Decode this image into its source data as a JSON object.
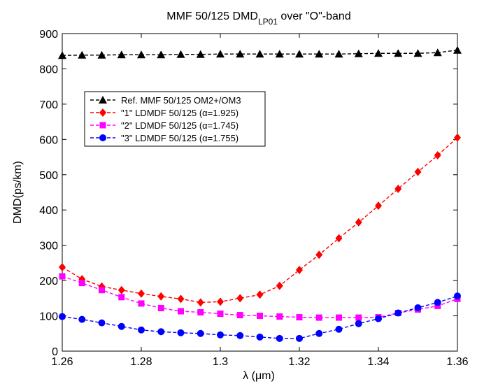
{
  "chart_data": {
    "type": "line",
    "title": {
      "main": "MMF 50/125 DMD",
      "subscript": "LP01",
      "suffix": " over \"O\"-band"
    },
    "xlabel": "λ (μm)",
    "ylabel": "DMD(ps/km)",
    "xlim": [
      1.26,
      1.36
    ],
    "ylim": [
      0,
      900
    ],
    "xticks": [
      1.26,
      1.28,
      1.3,
      1.32,
      1.34,
      1.36
    ],
    "xtick_labels": [
      "1.26",
      "1.28",
      "1.3",
      "1.32",
      "1.34",
      "1.36"
    ],
    "yticks": [
      0,
      100,
      200,
      300,
      400,
      500,
      600,
      700,
      800,
      900
    ],
    "ytick_labels": [
      "0",
      "100",
      "200",
      "300",
      "400",
      "500",
      "600",
      "700",
      "800",
      "900"
    ],
    "grid": false,
    "legend_position": "upper-left",
    "x": [
      1.26,
      1.265,
      1.27,
      1.275,
      1.28,
      1.285,
      1.29,
      1.295,
      1.3,
      1.305,
      1.31,
      1.315,
      1.32,
      1.325,
      1.33,
      1.335,
      1.34,
      1.345,
      1.35,
      1.355,
      1.36
    ],
    "series": [
      {
        "name": "Ref. MMF 50/125 OM2+/OM3",
        "color": "#000000",
        "marker": "triangle",
        "values": [
          838,
          839,
          839,
          840,
          840,
          840,
          841,
          841,
          842,
          842,
          842,
          842,
          842,
          842,
          842,
          843,
          844,
          844,
          844,
          846,
          853
        ]
      },
      {
        "name": "\"1\" LDMDF 50/125 (α=1.925)",
        "color": "#ff0000",
        "marker": "diamond",
        "values": [
          238,
          204,
          183,
          173,
          163,
          155,
          148,
          138,
          140,
          150,
          160,
          185,
          230,
          273,
          320,
          365,
          412,
          460,
          508,
          555,
          605
        ]
      },
      {
        "name": "\"2\" LDMDF 50/125 (α=1.745)",
        "color": "#ff00ff",
        "marker": "square",
        "values": [
          212,
          193,
          173,
          153,
          135,
          122,
          113,
          110,
          106,
          102,
          100,
          98,
          96,
          95,
          95,
          95,
          96,
          108,
          118,
          128,
          148
        ]
      },
      {
        "name": "\"3\" LDMDF 50/125 (α=1.755)",
        "color": "#0000ff",
        "marker": "circle",
        "values": [
          98,
          90,
          80,
          70,
          60,
          55,
          52,
          50,
          46,
          44,
          40,
          36,
          36,
          50,
          62,
          78,
          92,
          108,
          123,
          138,
          156
        ]
      }
    ]
  }
}
